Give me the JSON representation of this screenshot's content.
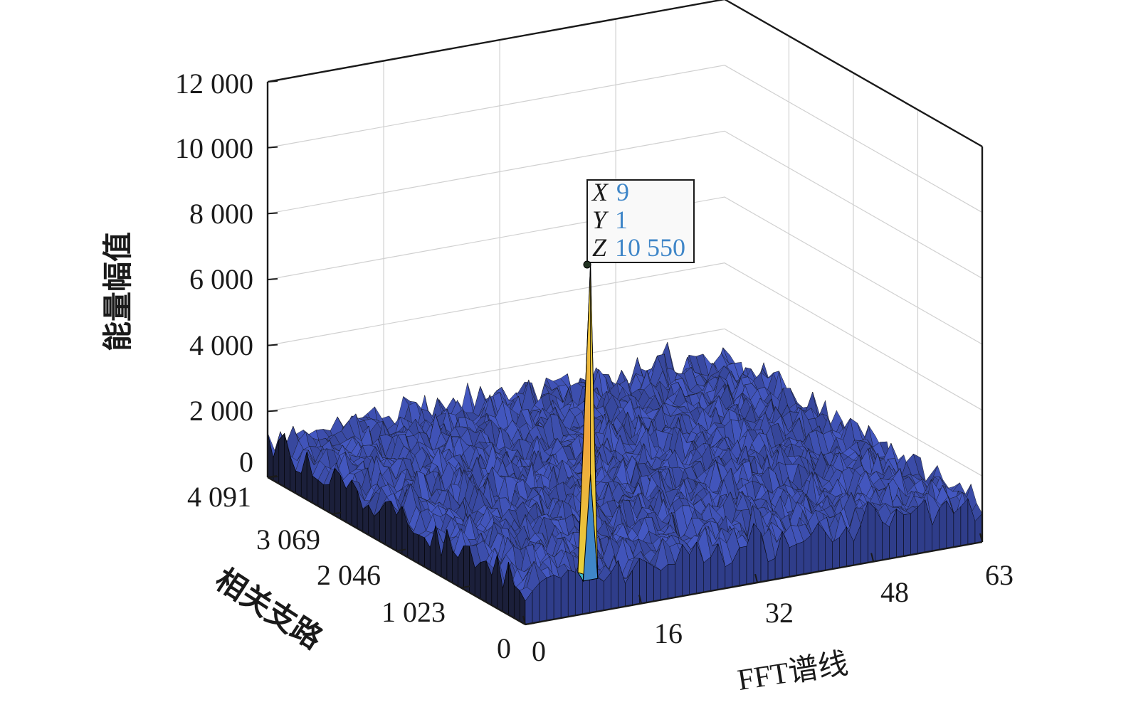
{
  "chart_data": {
    "type": "surface",
    "title": "",
    "xlabel": "FFT谱线",
    "ylabel": "相关支路",
    "zlabel": "能量幅值",
    "x_ticks": [
      "0",
      "16",
      "32",
      "48",
      "63"
    ],
    "y_ticks": [
      "0",
      "1 023",
      "2 046",
      "3 069",
      "4 091"
    ],
    "z_ticks": [
      "0",
      "2 000",
      "4 000",
      "6 000",
      "8 000",
      "10 000",
      "12 000"
    ],
    "xlim": [
      0,
      63
    ],
    "ylim": [
      0,
      4091
    ],
    "zlim": [
      0,
      12000
    ],
    "grid": true,
    "colormap": "parula",
    "noise_floor_level": 1000,
    "noise_floor_max": 1600,
    "peak": {
      "x": 9,
      "y": 1,
      "z": 10550
    },
    "datatip": {
      "x_label": "X",
      "x_value": "9",
      "y_label": "Y",
      "y_value": "1",
      "z_label": "Z",
      "z_value": "10 550"
    },
    "colors": {
      "surface_base": "#3d4fae",
      "edge": "#111111",
      "peak_green": "#5fc06a",
      "peak_yellow": "#e7d43b",
      "peak_orange": "#f0a33c",
      "peak_cyan": "#3fb6c9",
      "peak_blue": "#3f86c8",
      "axis": "#1a1a1a",
      "grid": "#d0d0d0"
    }
  }
}
